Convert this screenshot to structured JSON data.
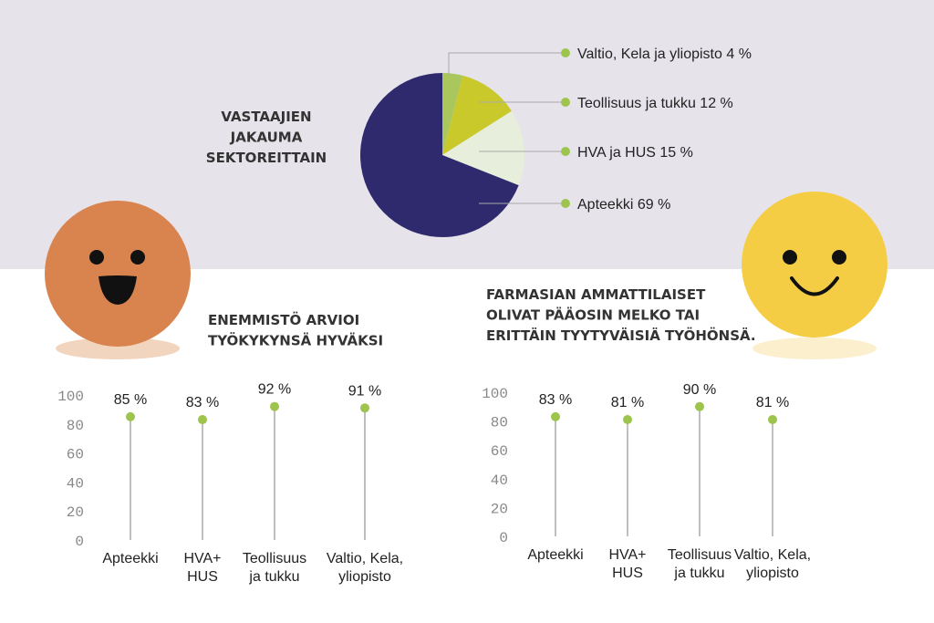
{
  "chart_data": [
    {
      "type": "pie",
      "title": "VASTAAJIEN\nJAKAUMA\nSEKTOREITTAIN",
      "categories": [
        "Valtio, Kela ja yliopisto",
        "Teollisuus ja tukku",
        "HVA ja HUS",
        "Apteekki"
      ],
      "values": [
        4,
        12,
        15,
        69
      ],
      "value_labels": [
        "4 %",
        "12 %",
        "15 %",
        "69 %"
      ],
      "colors": [
        "#a9c75c",
        "#c9c92c",
        "#e7eedb",
        "#2e2a6d"
      ]
    },
    {
      "type": "lollipop",
      "title": "ENEMMISTÖ ARVIOI\nTYÖKYKYNSÄ HYVÄKSI",
      "categories": [
        "Apteekki",
        "HVA+\nHUS",
        "Teollisuus\nja tukku",
        "Valtio, Kela,\nyliopisto"
      ],
      "values": [
        85,
        83,
        92,
        91
      ],
      "value_labels": [
        "85 %",
        "83 %",
        "92 %",
        "91 %"
      ],
      "color": "#9dc44d",
      "ylim": [
        0,
        100
      ],
      "yticks": [
        0,
        20,
        40,
        60,
        80,
        100
      ]
    },
    {
      "type": "lollipop",
      "title": "FARMASIAN AMMATTILAISET\nOLIVAT PÄÄOSIN MELKO TAI\nERITTÄIN TYYTYVÄISIÄ TYÖHÖNSÄ.",
      "categories": [
        "Apteekki",
        "HVA+\nHUS",
        "Teollisuus\nja tukku",
        "Valtio, Kela,\nyliopisto"
      ],
      "values": [
        83,
        81,
        90,
        81
      ],
      "value_labels": [
        "83 %",
        "81 %",
        "90 %",
        "81 %"
      ],
      "color": "#9dc44d",
      "ylim": [
        0,
        100
      ],
      "yticks": [
        0,
        20,
        40,
        60,
        80,
        100
      ]
    }
  ]
}
